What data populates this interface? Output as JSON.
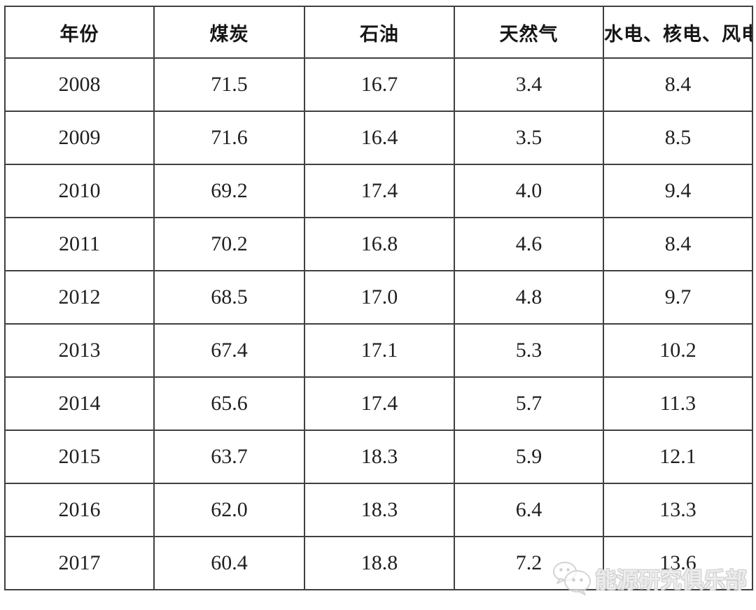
{
  "chart_data": {
    "type": "table",
    "title": "",
    "columns": [
      "年份",
      "煤炭",
      "石油",
      "天然气",
      "水电、核电、风电"
    ],
    "rows": [
      [
        "2008",
        "71.5",
        "16.7",
        "3.4",
        "8.4"
      ],
      [
        "2009",
        "71.6",
        "16.4",
        "3.5",
        "8.5"
      ],
      [
        "2010",
        "69.2",
        "17.4",
        "4.0",
        "9.4"
      ],
      [
        "2011",
        "70.2",
        "16.8",
        "4.6",
        "8.4"
      ],
      [
        "2012",
        "68.5",
        "17.0",
        "4.8",
        "9.7"
      ],
      [
        "2013",
        "67.4",
        "17.1",
        "5.3",
        "10.2"
      ],
      [
        "2014",
        "65.6",
        "17.4",
        "5.7",
        "11.3"
      ],
      [
        "2015",
        "63.7",
        "18.3",
        "5.9",
        "12.1"
      ],
      [
        "2016",
        "62.0",
        "18.3",
        "6.4",
        "13.3"
      ],
      [
        "2017",
        "60.4",
        "18.8",
        "7.2",
        "13.6"
      ]
    ]
  },
  "watermark": {
    "icon": "wechat-icon",
    "text": "能源研究俱乐部"
  },
  "colors": {
    "border": "#404040",
    "text": "#1f1f1f",
    "header_text": "#161616",
    "watermark_outline": "#cdcdcd",
    "background": "#ffffff"
  }
}
